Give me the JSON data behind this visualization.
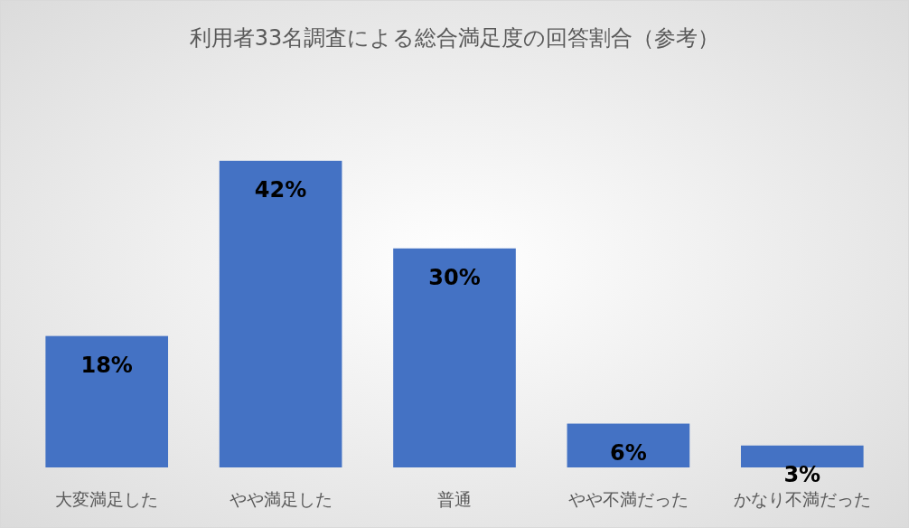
{
  "chart_data": {
    "type": "bar",
    "title": "利用者33名調査による総合満足度の回答割合（参考）",
    "categories": [
      "大変満足した",
      "やや満足した",
      "普通",
      "やや不満だった",
      "かなり不満だった"
    ],
    "values": [
      18,
      42,
      30,
      6,
      3
    ],
    "value_labels": [
      "18%",
      "42%",
      "30%",
      "6%",
      "3%"
    ],
    "color": "#4472c4"
  }
}
